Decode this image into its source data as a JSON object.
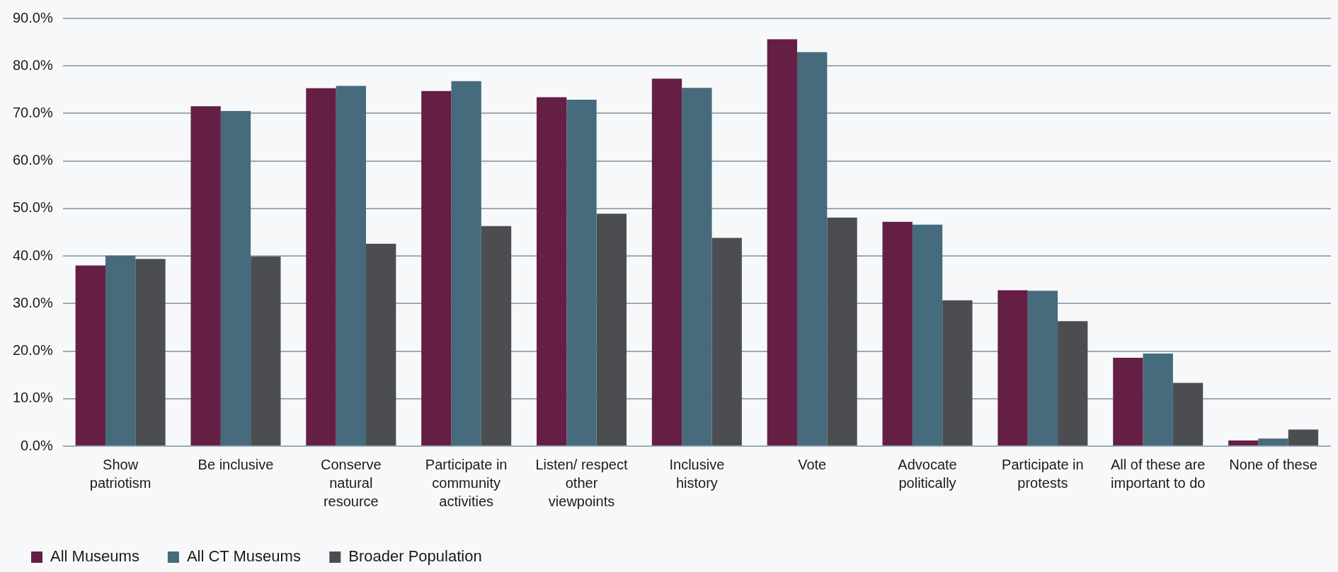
{
  "chart_data": {
    "type": "bar",
    "categories": [
      "Show patriotism",
      "Be inclusive",
      "Conserve natural resource",
      "Participate in community activities",
      "Listen/ respect other viewpoints",
      "Inclusive history",
      "Vote",
      "Advocate politically",
      "Participate in protests",
      "All of these are important to do",
      "None of these"
    ],
    "series": [
      {
        "name": "All Museums",
        "color": "#651f44",
        "values": [
          38.0,
          71.5,
          75.3,
          74.7,
          73.4,
          77.3,
          85.6,
          47.2,
          32.8,
          18.6,
          1.2
        ]
      },
      {
        "name": "All CT Museums",
        "color": "#466b7d",
        "values": [
          40.1,
          70.5,
          75.8,
          76.8,
          72.9,
          75.4,
          82.9,
          46.6,
          32.7,
          19.5,
          1.6
        ]
      },
      {
        "name": "Broader Population",
        "color": "#4c4d51",
        "values": [
          39.4,
          39.9,
          42.6,
          46.3,
          48.9,
          43.8,
          48.1,
          30.7,
          26.3,
          13.3,
          3.5
        ]
      }
    ],
    "ylim": [
      0,
      90
    ],
    "yticks": [
      {
        "value": 0,
        "label": "0.0%"
      },
      {
        "value": 10,
        "label": "10.0%"
      },
      {
        "value": 20,
        "label": "20.0%"
      },
      {
        "value": 30,
        "label": "30.0%"
      },
      {
        "value": 40,
        "label": "40.0%"
      },
      {
        "value": 50,
        "label": "50.0%"
      },
      {
        "value": 60,
        "label": "60.0%"
      },
      {
        "value": 70,
        "label": "70.0%"
      },
      {
        "value": 80,
        "label": "80.0%"
      },
      {
        "value": 90,
        "label": "90.0%"
      }
    ],
    "grid": "y",
    "legend": "bottom left"
  }
}
